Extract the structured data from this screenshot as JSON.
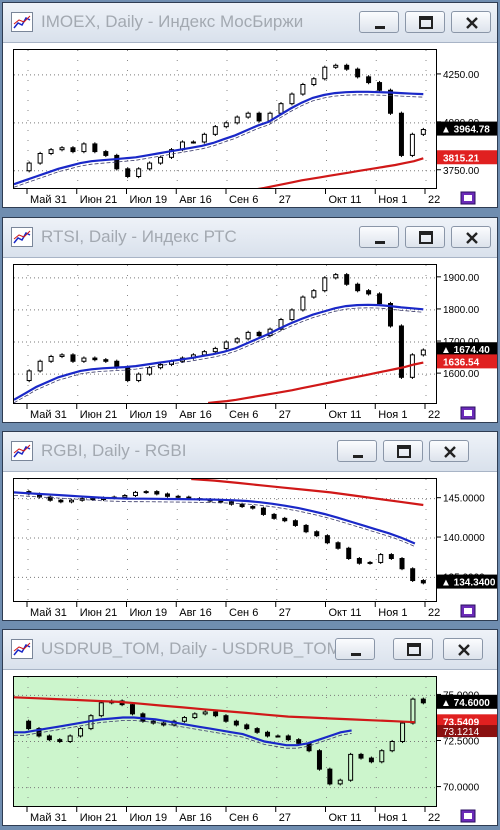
{
  "windows": [
    {
      "title": "IMOEX, Daily - Индекс МосБиржи",
      "chart_data": {
        "type": "line",
        "title": "IMOEX, Daily - Индекс МосБиржи",
        "x_ticks": [
          "Май 31",
          "Июн 21",
          "Июл 19",
          "Авг 16",
          "Сен 6",
          "27",
          "Окт 11",
          "Ноя 1",
          "22"
        ],
        "y_ticks": [
          "4250.00",
          "4000.00",
          "3750.00"
        ],
        "ylim": [
          3660,
          4380
        ],
        "last_price": "3964.78",
        "ma_label": "3815.21",
        "price_bg": "#ffffff",
        "series": [
          {
            "role": "price",
            "color": "#000000",
            "values": [
              3750,
              3790,
              3840,
              3860,
              3870,
              3850,
              3890,
              3850,
              3830,
              3760,
              3720,
              3760,
              3790,
              3820,
              3860,
              3900,
              3900,
              3940,
              3980,
              4000,
              4030,
              4050,
              4010,
              4050,
              4100,
              4150,
              4200,
              4230,
              4290,
              4300,
              4280,
              4240,
              4210,
              4170,
              4050,
              3830,
              3940,
              3965
            ]
          },
          {
            "role": "ma-blue",
            "color": "#1a28c8",
            "values": [
              3680,
              3700,
              3720,
              3740,
              3760,
              3775,
              3790,
              3800,
              3805,
              3810,
              3815,
              3820,
              3830,
              3840,
              3850,
              3860,
              3870,
              3880,
              3895,
              3915,
              3935,
              3960,
              3985,
              4005,
              4040,
              4075,
              4105,
              4130,
              4145,
              4155,
              4160,
              4162,
              4162,
              4160,
              4158,
              4155,
              4152,
              4150
            ]
          },
          {
            "role": "ma-red",
            "color": "#d01818",
            "values": [
              3620,
              3625,
              3630,
              3638,
              3645,
              3652,
              3660,
              3670,
              3680,
              3690,
              3700,
              3708,
              3716,
              3724,
              3732,
              3740,
              3748,
              3756,
              3764,
              3772,
              3780,
              3790,
              3800,
              3815
            ]
          }
        ]
      }
    },
    {
      "title": "RTSI, Daily - Индекс РТС",
      "chart_data": {
        "type": "line",
        "title": "RTSI, Daily - Индекс РТС",
        "x_ticks": [
          "Май 31",
          "Июн 21",
          "Июл 19",
          "Авг 16",
          "Сен 6",
          "27",
          "Окт 11",
          "Ноя 1",
          "22"
        ],
        "y_ticks": [
          "1900.00",
          "1800.00",
          "1700.00",
          "1600.00"
        ],
        "ylim": [
          1510,
          1940
        ],
        "last_price": "1674.40",
        "ma_label": "1636.54",
        "price_bg": "#ffffff",
        "series": [
          {
            "role": "price",
            "color": "#000000",
            "values": [
              1580,
              1610,
              1640,
              1655,
              1660,
              1640,
              1650,
              1645,
              1640,
              1620,
              1580,
              1600,
              1620,
              1630,
              1640,
              1650,
              1660,
              1670,
              1680,
              1700,
              1710,
              1730,
              1720,
              1740,
              1770,
              1800,
              1840,
              1860,
              1900,
              1910,
              1880,
              1860,
              1850,
              1820,
              1750,
              1590,
              1660,
              1675
            ]
          },
          {
            "role": "ma-blue",
            "color": "#1a28c8",
            "values": [
              1520,
              1540,
              1560,
              1575,
              1590,
              1600,
              1610,
              1615,
              1618,
              1620,
              1622,
              1625,
              1630,
              1635,
              1640,
              1645,
              1650,
              1656,
              1662,
              1670,
              1680,
              1695,
              1710,
              1725,
              1742,
              1758,
              1772,
              1785,
              1795,
              1805,
              1812,
              1815,
              1816,
              1815,
              1812,
              1808,
              1805,
              1802
            ]
          },
          {
            "role": "ma-red",
            "color": "#d01818",
            "values": [
              1510,
              1513,
              1516,
              1520,
              1525,
              1530,
              1535,
              1540,
              1545,
              1550,
              1556,
              1562,
              1568,
              1574,
              1580,
              1586,
              1592,
              1598,
              1604,
              1610,
              1616,
              1622,
              1630,
              1636
            ]
          }
        ]
      }
    },
    {
      "title": "RGBI, Daily - RGBI",
      "chart_data": {
        "type": "line",
        "title": "RGBI, Daily - RGBI",
        "x_ticks": [
          "Май 31",
          "Июн 21",
          "Июл 19",
          "Авг 16",
          "Сен 6",
          "27",
          "Окт 11",
          "Ноя 1",
          "22"
        ],
        "y_ticks": [
          "145.0000",
          "140.0000",
          "135.0000"
        ],
        "ylim": [
          132.0,
          147.5
        ],
        "last_price": "134.3400",
        "ma_label": "",
        "price_bg": "#ffffff",
        "series": [
          {
            "role": "price",
            "color": "#000000",
            "values": [
              145.9,
              145.6,
              145.2,
              144.8,
              144.6,
              144.8,
              145.0,
              144.9,
              145.1,
              145.2,
              145.4,
              145.8,
              145.9,
              145.6,
              145.3,
              145.2,
              145.0,
              144.9,
              144.7,
              144.6,
              144.3,
              144.0,
              143.8,
              143.0,
              142.5,
              142.2,
              141.6,
              140.8,
              140.3,
              139.4,
              138.7,
              137.4,
              136.8,
              136.9,
              137.9,
              137.4,
              136.1,
              134.6,
              134.3
            ]
          },
          {
            "role": "ma-blue",
            "color": "#1a28c8",
            "values": [
              145.8,
              145.7,
              145.6,
              145.5,
              145.4,
              145.3,
              145.2,
              145.1,
              145.05,
              145.0,
              145.0,
              144.98,
              144.96,
              144.94,
              144.92,
              144.9,
              144.86,
              144.8,
              144.7,
              144.55,
              144.35,
              144.1,
              143.8,
              143.45,
              143.05,
              142.6,
              142.1,
              141.6,
              141.1,
              140.6,
              140.0,
              139.3
            ]
          },
          {
            "role": "ma-red",
            "color": "#d01818",
            "values": [
              147.5,
              147.3,
              147.0,
              146.7,
              146.4,
              146.1,
              145.8,
              145.4,
              145.0,
              144.6,
              144.2
            ]
          }
        ]
      }
    },
    {
      "title": "USDRUB_TOM, Daily - USDRUB_TOM",
      "chart_data": {
        "type": "line",
        "title": "USDRUB_TOM, Daily - USDRUB_TOM",
        "x_ticks": [
          "Май 31",
          "Июн 21",
          "Июл 19",
          "Авг 16",
          "Сен 6",
          "27",
          "Окт 11",
          "Ноя 1",
          "22"
        ],
        "y_ticks": [
          "75.0000",
          "72.5000",
          "70.0000"
        ],
        "ylim": [
          69.0,
          76.0
        ],
        "last_price": "74.6000",
        "ma_label": "73.5409",
        "ma_label2": "73.1214",
        "price_bg": "#ccf5cc",
        "series": [
          {
            "role": "price",
            "color": "#000000",
            "values": [
              73.6,
              73.2,
              72.8,
              72.6,
              72.5,
              72.8,
              73.2,
              73.9,
              74.6,
              74.7,
              74.5,
              74.0,
              73.6,
              73.5,
              73.4,
              73.6,
              73.8,
              74.0,
              74.1,
              73.9,
              73.6,
              73.4,
              73.2,
              73.0,
              72.8,
              72.8,
              72.6,
              72.4,
              72.0,
              71.0,
              70.2,
              70.4,
              71.8,
              71.6,
              71.4,
              72.0,
              72.5,
              73.5,
              74.8,
              74.6
            ]
          },
          {
            "role": "ma-blue",
            "color": "#1a28c8",
            "values": [
              73.0,
              73.0,
              73.1,
              73.2,
              73.3,
              73.4,
              73.5,
              73.6,
              73.7,
              73.75,
              73.8,
              73.8,
              73.75,
              73.7,
              73.6,
              73.5,
              73.4,
              73.3,
              73.2,
              73.1,
              73.0,
              72.9,
              72.7,
              72.5,
              72.4,
              72.3,
              72.3,
              72.4,
              72.6,
              72.8,
              73.0,
              73.1
            ]
          },
          {
            "role": "ma-red",
            "color": "#d01818",
            "values": [
              74.9,
              74.85,
              74.8,
              74.75,
              74.7,
              74.65,
              74.55,
              74.45,
              74.35,
              74.25,
              74.15,
              74.05,
              73.95,
              73.85,
              73.8,
              73.75,
              73.7,
              73.65,
              73.6,
              73.55
            ]
          }
        ]
      }
    }
  ]
}
